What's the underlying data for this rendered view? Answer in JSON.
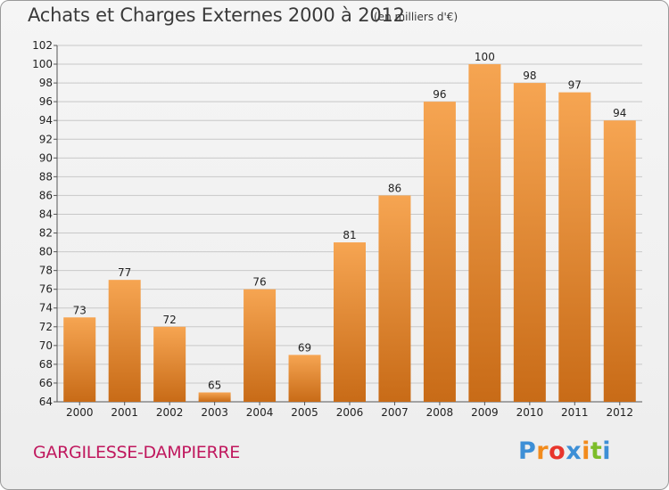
{
  "header": {
    "title": "Achats et Charges Externes 2000 à 2012",
    "subtitle": "(en milliers d'€)"
  },
  "footer": {
    "commune": "GARGILESSE-DAMPIERRE",
    "logo": {
      "letters": [
        "P",
        "r",
        "o",
        "x",
        "i",
        "t",
        "i"
      ],
      "colors": [
        "#3d8fd6",
        "#f28b1c",
        "#e8352c",
        "#3d8fd6",
        "#f28b1c",
        "#7cbd2a",
        "#3d8fd6"
      ]
    }
  },
  "chart_data": {
    "type": "bar",
    "title": "Achats et Charges Externes 2000 à 2012",
    "subtitle": "(en milliers d'€)",
    "categories": [
      "2000",
      "2001",
      "2002",
      "2003",
      "2004",
      "2005",
      "2006",
      "2007",
      "2008",
      "2009",
      "2010",
      "2011",
      "2012"
    ],
    "values": [
      73,
      77,
      72,
      65,
      76,
      69,
      81,
      86,
      96,
      100,
      98,
      97,
      94
    ],
    "ylim": [
      64,
      102
    ],
    "yticks": [
      64,
      66,
      68,
      70,
      72,
      74,
      76,
      78,
      80,
      82,
      84,
      86,
      88,
      90,
      92,
      94,
      96,
      98,
      100,
      102
    ],
    "grid": true,
    "legend": "none",
    "bar_color_top": "#f6a552",
    "bar_color_bottom": "#c86b17",
    "grid_color": "#c8c8c8"
  }
}
